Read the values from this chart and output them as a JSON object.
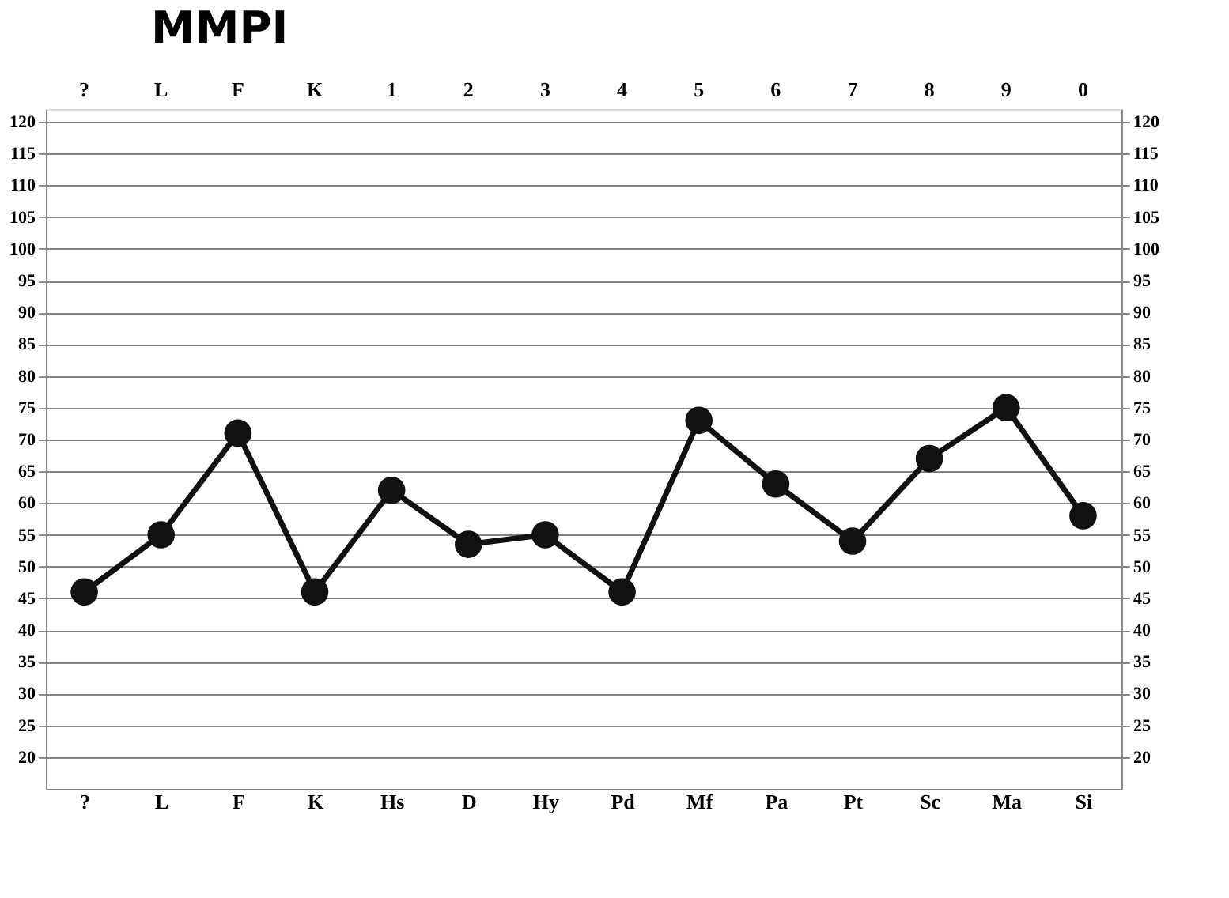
{
  "chart_data": {
    "type": "line",
    "title": "MMPI",
    "categories": [
      "?",
      "L",
      "F",
      "K",
      "Hs",
      "D",
      "Hy",
      "Pd",
      "Mf",
      "Pa",
      "Pt",
      "Sc",
      "Ma",
      "Si"
    ],
    "annotations": [
      "?",
      "L",
      "F",
      "K",
      "1",
      "2",
      "3",
      "4",
      "5",
      "6",
      "7",
      "8",
      "9",
      "0"
    ],
    "series": [
      {
        "color": "#111111",
        "values": [
          46,
          55,
          71,
          46,
          62,
          53.5,
          55,
          46,
          73,
          63,
          54,
          67,
          75,
          58
        ]
      }
    ],
    "ylim": [
      15,
      122
    ],
    "yticks": [
      20,
      25,
      30,
      35,
      40,
      45,
      50,
      55,
      60,
      65,
      70,
      75,
      80,
      85,
      90,
      95,
      100,
      105,
      110,
      115,
      120
    ],
    "y2lim": [
      15,
      122
    ],
    "y2ticks": [
      20,
      25,
      30,
      35,
      40,
      45,
      50,
      55,
      60,
      65,
      70,
      75,
      80,
      85,
      90,
      95,
      100,
      105,
      110,
      115,
      120
    ],
    "grid": "y",
    "marker": "circle",
    "line_style": "solid"
  }
}
